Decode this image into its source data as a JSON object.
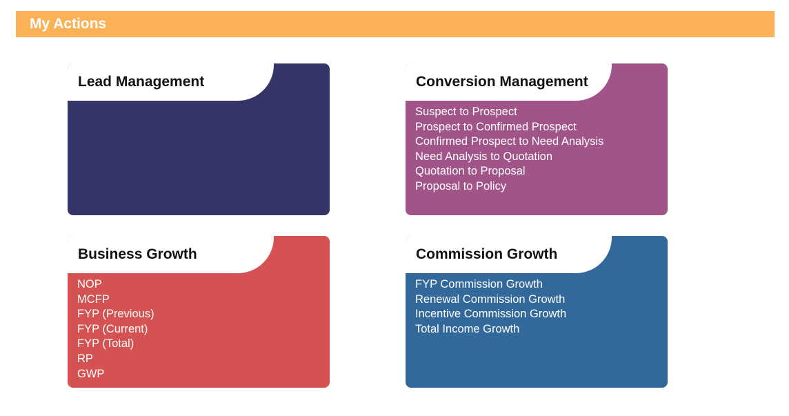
{
  "header": {
    "title": "My Actions",
    "bg_color": "#fbb257"
  },
  "cards": [
    {
      "id": "lead",
      "title": "Lead Management",
      "color": "#353468",
      "items": []
    },
    {
      "id": "conversion",
      "title": "Conversion Management",
      "color": "#a05488",
      "items": [
        "Suspect to Prospect",
        "Prospect to Confirmed Prospect",
        "Confirmed Prospect to Need Analysis",
        "Need Analysis to Quotation",
        "Quotation to Proposal",
        "Proposal to Policy"
      ]
    },
    {
      "id": "business",
      "title": "Business Growth",
      "color": "#d55252",
      "items": [
        "NOP",
        "MCFP",
        "FYP (Previous)",
        "FYP (Current)",
        "FYP (Total)",
        "RP",
        "GWP"
      ]
    },
    {
      "id": "commission",
      "title": "Commission Growth",
      "color": "#33689a",
      "items": [
        "FYP Commission Growth",
        "Renewal Commission Growth",
        "Incentive Commission Growth",
        "Total Income Growth"
      ]
    }
  ]
}
